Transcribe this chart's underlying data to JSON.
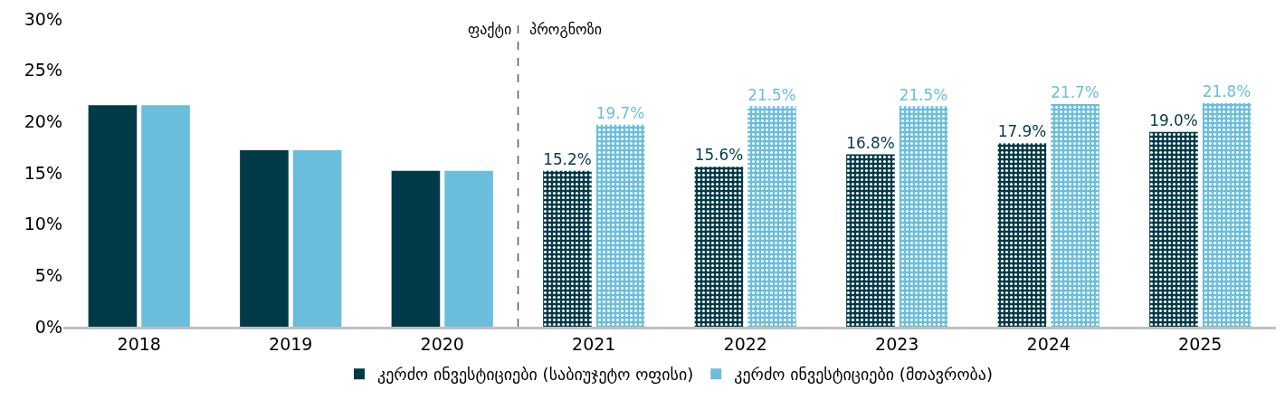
{
  "chart_data": {
    "type": "bar",
    "categories": [
      "2018",
      "2019",
      "2020",
      "2021",
      "2022",
      "2023",
      "2024",
      "2025"
    ],
    "series": [
      {
        "name": "კერძო ინვესტიციები (საბიუჯეტო ოფისი)",
        "color": "#003a48",
        "values": [
          21.6,
          17.2,
          15.2,
          15.2,
          15.6,
          16.8,
          17.9,
          19.0
        ],
        "value_labels": [
          null,
          null,
          null,
          "15.2%",
          "15.6%",
          "16.8%",
          "17.9%",
          "19.0%"
        ]
      },
      {
        "name": "კერძო ინვესტიციები (მთავრობა)",
        "color": "#6bbedb",
        "values": [
          21.6,
          17.2,
          15.2,
          19.7,
          21.5,
          21.5,
          21.7,
          21.8
        ],
        "value_labels": [
          null,
          null,
          null,
          "19.7%",
          "21.5%",
          "21.5%",
          "21.7%",
          "21.8%"
        ]
      }
    ],
    "ylim": [
      0,
      30
    ],
    "yticks": [
      {
        "value": 0,
        "label": "0%"
      },
      {
        "value": 5,
        "label": "5%"
      },
      {
        "value": 10,
        "label": "10%"
      },
      {
        "value": 15,
        "label": "15%"
      },
      {
        "value": 20,
        "label": "20%"
      },
      {
        "value": 25,
        "label": "25%"
      },
      {
        "value": 30,
        "label": "30%"
      }
    ],
    "annotations": [
      "ფაქტი",
      "პროგნოზი"
    ],
    "legend": "bottom"
  }
}
